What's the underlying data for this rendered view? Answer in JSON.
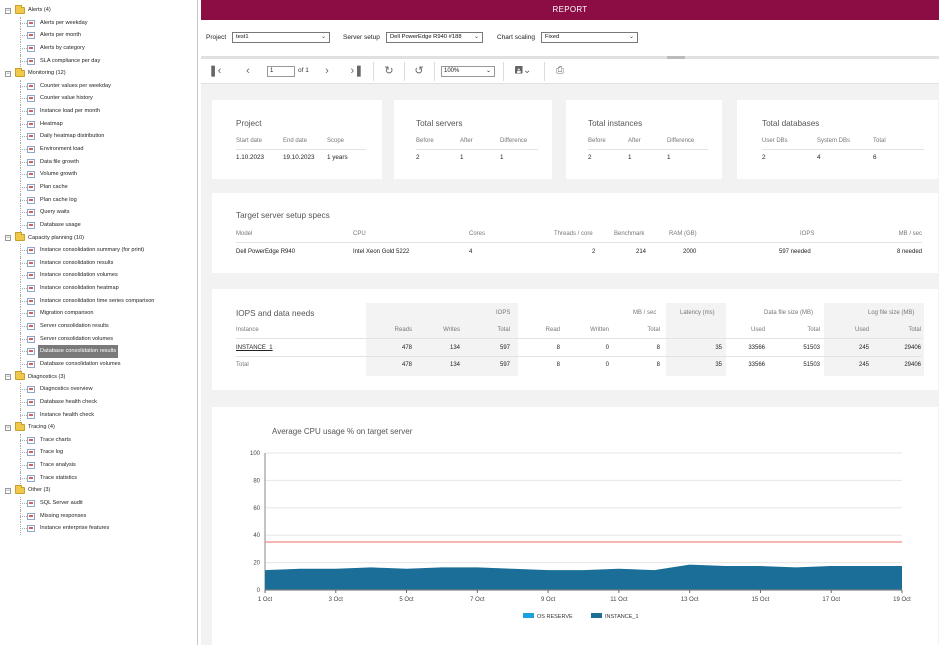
{
  "tree": {
    "groups": [
      {
        "label": "Alerts (4)",
        "items": [
          "Alerts per weekday",
          "Alerts per month",
          "Alerts by category",
          "SLA compliance per day"
        ]
      },
      {
        "label": "Monitoring (12)",
        "items": [
          "Counter values per weekday",
          "Counter value history",
          "Instance load per month",
          "Heatmap",
          "Daily heatmap distribution",
          "Environment load",
          "Data file growth",
          "Volume growth",
          "Plan cache",
          "Plan cache log",
          "Query waits",
          "Database usage"
        ]
      },
      {
        "label": "Capacity planning (10)",
        "items": [
          "Instance consolidation summary (for print)",
          "Instance consolidation results",
          "Instance consolidation volumes",
          "Instance consolidation heatmap",
          "Instance consolidation time series comparison",
          "Migration comparison",
          "Server consolidation results",
          "Server consolidation volumes",
          "Database consolidation results",
          "Database consolidation volumes"
        ]
      },
      {
        "label": "Diagnostics (3)",
        "items": [
          "Diagnostics overview",
          "Database health check",
          "Instance health check"
        ]
      },
      {
        "label": "Tracing (4)",
        "items": [
          "Trace charts",
          "Trace log",
          "Trace analysis",
          "Trace statistics"
        ]
      },
      {
        "label": "Other (3)",
        "items": [
          "SQL Server audit",
          "Missing responses",
          "Instance enterprise features"
        ]
      }
    ],
    "selected": "Database consolidation results"
  },
  "header": {
    "title": "REPORT"
  },
  "params": {
    "project_label": "Project",
    "project_value": "test1",
    "server_setup_label": "Server setup",
    "server_setup_value": "Dell PowerEdge R940 #188",
    "chart_scaling_label": "Chart scaling",
    "chart_scaling_value": "Fixed"
  },
  "toolbar": {
    "page_value": "1",
    "page_of": "of 1",
    "zoom_value": "100%"
  },
  "project_card": {
    "title": "Project",
    "headers": [
      "Start date",
      "End date",
      "Scope"
    ],
    "values": [
      "1.10.2023",
      "19.10.2023",
      "1 years"
    ]
  },
  "servers_card": {
    "title": "Total servers",
    "headers": [
      "Before",
      "After",
      "Difference"
    ],
    "values": [
      "2",
      "1",
      "1"
    ]
  },
  "instances_card": {
    "title": "Total instances",
    "headers": [
      "Before",
      "After",
      "Difference"
    ],
    "values": [
      "2",
      "1",
      "1"
    ]
  },
  "databases_card": {
    "title": "Total databases",
    "headers": [
      "User DBs",
      "System DBs",
      "Total"
    ],
    "values": [
      "2",
      "4",
      "6"
    ]
  },
  "spec_card": {
    "title": "Target server setup specs",
    "headers": [
      "Model",
      "CPU",
      "Cores",
      "Threads / core",
      "Benchmark",
      "RAM (GB)",
      "IOPS",
      "MB / sec"
    ],
    "values": [
      "Dell PowerEdge R940",
      "Intel Xeon Gold 5222",
      "4",
      "2",
      "214",
      "2000",
      "597 needed",
      "8 needed"
    ]
  },
  "iops_card": {
    "title": "IOPS and data needs",
    "group_headers": [
      "IOPS",
      "MB / sec",
      "Latency (ms)",
      "Data file size (MB)",
      "Log file size (MB)"
    ],
    "columns": [
      "Instance",
      "Reads",
      "Writes",
      "Total",
      "Read",
      "Written",
      "Total",
      "",
      "Used",
      "Total",
      "Used",
      "Total"
    ],
    "rows": [
      [
        "INSTANCE_1",
        "478",
        "134",
        "597",
        "8",
        "0",
        "8",
        "35",
        "33566",
        "51503",
        "245",
        "29406"
      ],
      [
        "Total",
        "478",
        "134",
        "597",
        "8",
        "0",
        "8",
        "35",
        "33566",
        "51503",
        "245",
        "29406"
      ]
    ]
  },
  "chart_data": {
    "type": "area",
    "title": "Average CPU usage % on target server",
    "x": [
      "1 Oct",
      "2 Oct",
      "3 Oct",
      "4 Oct",
      "5 Oct",
      "6 Oct",
      "7 Oct",
      "8 Oct",
      "9 Oct",
      "10 Oct",
      "11 Oct",
      "12 Oct",
      "13 Oct",
      "14 Oct",
      "15 Oct",
      "16 Oct",
      "17 Oct",
      "18 Oct",
      "19 Oct"
    ],
    "x_tick_labels": [
      "1 Oct",
      "3 Oct",
      "5 Oct",
      "7 Oct",
      "9 Oct",
      "11 Oct",
      "13 Oct",
      "15 Oct",
      "17 Oct",
      "19 Oct"
    ],
    "ylim": [
      0,
      100
    ],
    "y_ticks": [
      0,
      20,
      40,
      60,
      80,
      100
    ],
    "threshold": 35,
    "threshold_color": "#e8706a",
    "series": [
      {
        "name": "OS RESERVE",
        "color": "#1ba1dc",
        "values": [
          0.5,
          0.5,
          0.5,
          0.5,
          0.5,
          0.5,
          0.5,
          0.5,
          0.5,
          0.5,
          0.5,
          0.5,
          0.5,
          0.5,
          0.5,
          0.5,
          0.5,
          0.5,
          0.5
        ]
      },
      {
        "name": "INSTANCE_1",
        "color": "#1a6e98",
        "values": [
          14,
          15,
          15,
          16,
          15,
          16,
          16,
          15,
          14,
          14,
          15,
          14,
          18,
          17,
          17,
          16,
          17,
          17,
          17
        ]
      }
    ],
    "legend": "bottom-center",
    "grid": true
  }
}
